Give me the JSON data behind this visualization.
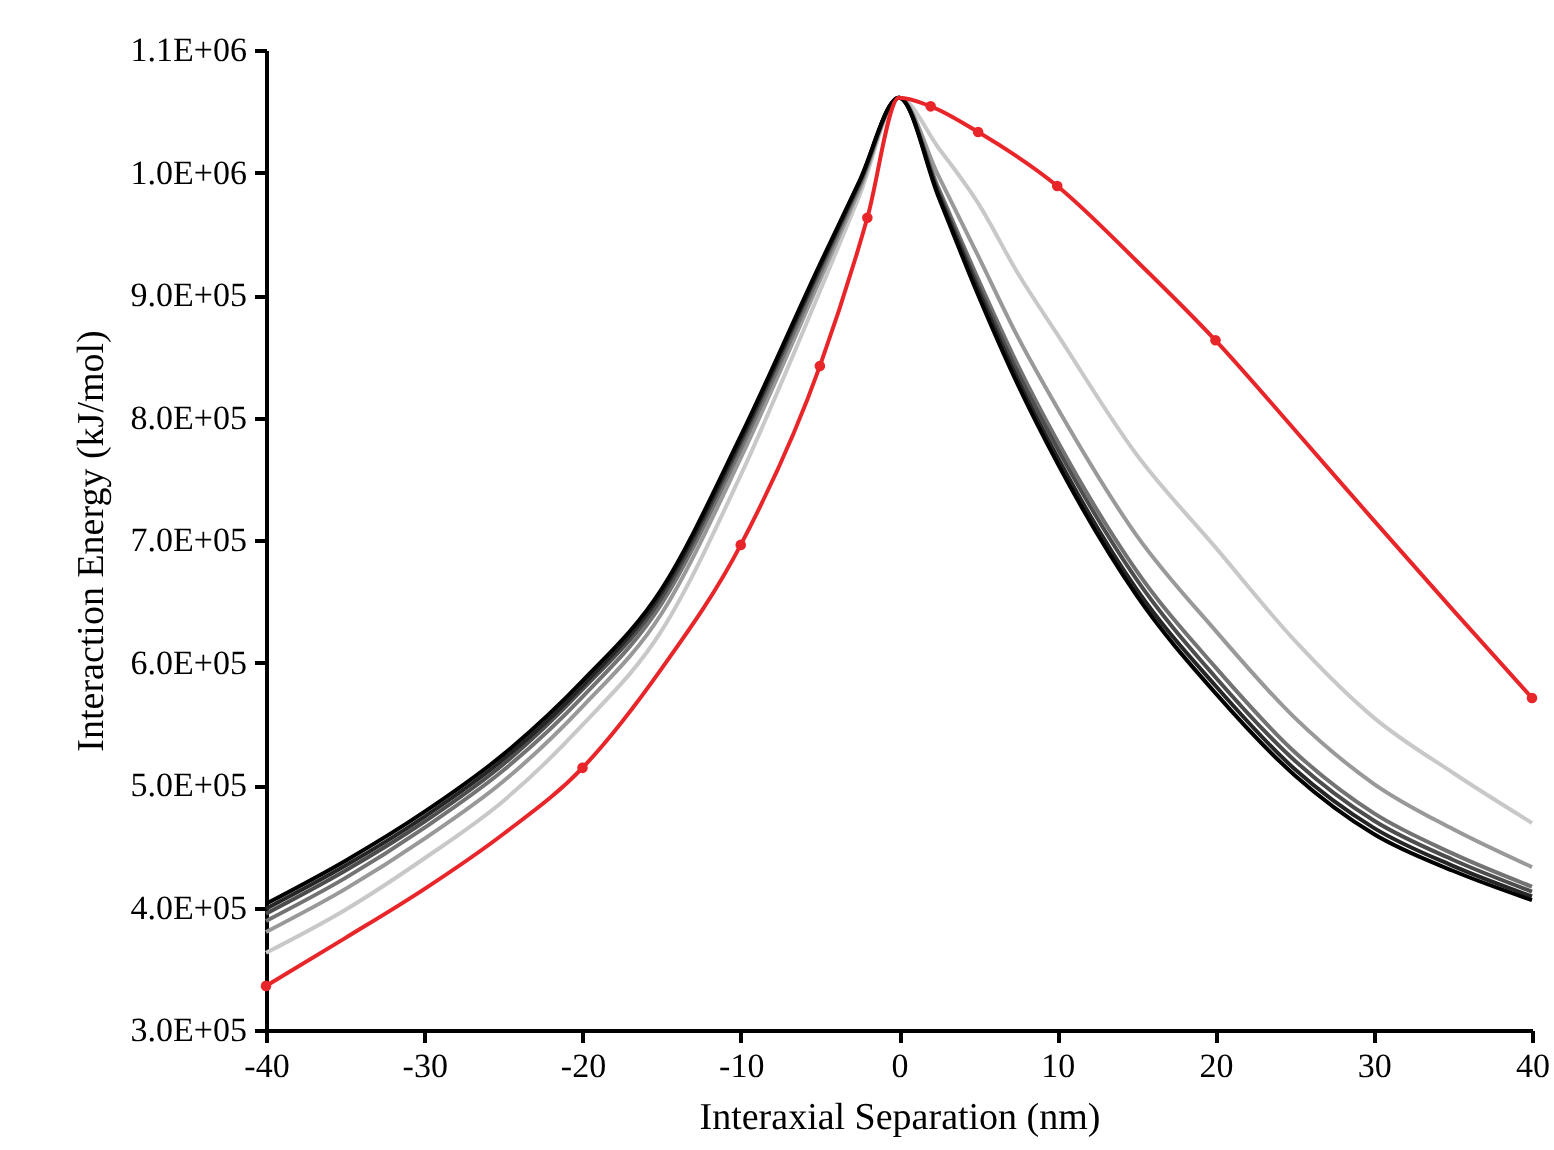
{
  "chart_data": {
    "type": "line",
    "xlabel": "Interaxial Separation (nm)",
    "ylabel": "Interaction Energy (kJ/mol)",
    "xlim": [
      -40,
      40
    ],
    "xticks": [
      -40,
      -30,
      -20,
      -10,
      0,
      10,
      20,
      30,
      40
    ],
    "ylim": [
      300000,
      1100000
    ],
    "yticks": [
      {
        "value": 300000,
        "label": "3.0E+05"
      },
      {
        "value": 400000,
        "label": "4.0E+05"
      },
      {
        "value": 500000,
        "label": "5.0E+05"
      },
      {
        "value": 600000,
        "label": "6.0E+05"
      },
      {
        "value": 700000,
        "label": "7.0E+05"
      },
      {
        "value": 800000,
        "label": "8.0E+05"
      },
      {
        "value": 900000,
        "label": "9.0E+05"
      },
      {
        "value": 1000000,
        "label": "1.0E+06"
      },
      {
        "value": 1100000,
        "label": "1.1E+06"
      }
    ],
    "grid": false,
    "x": [
      -40,
      -35,
      -30,
      -25,
      -20,
      -15,
      -10,
      -5,
      -2.5,
      0,
      2.5,
      5,
      7.5,
      10,
      15,
      20,
      25,
      30,
      35,
      40
    ],
    "series": [
      {
        "color": "#c8c8c8",
        "values": [
          363000,
          398000,
          440000,
          487000,
          549000,
          626000,
          753000,
          903000,
          981000,
          1061000,
          1020000,
          975000,
          918000,
          868000,
          770000,
          694000,
          618000,
          555000,
          510000,
          469000
        ]
      },
      {
        "color": "#999999",
        "values": [
          380000,
          415000,
          456000,
          503000,
          564000,
          640000,
          767000,
          912000,
          986000,
          1061000,
          997000,
          932000,
          866000,
          808000,
          704000,
          626000,
          555000,
          501000,
          464000,
          433000
        ]
      },
      {
        "color": "#737373",
        "values": [
          389000,
          424000,
          465000,
          512000,
          572000,
          648000,
          774000,
          917000,
          989000,
          1061000,
          987000,
          913000,
          843000,
          781000,
          675000,
          596000,
          527000,
          477000,
          444000,
          417000
        ]
      },
      {
        "color": "#4d4d4d",
        "values": [
          395000,
          430000,
          470000,
          517000,
          578000,
          653000,
          779000,
          921000,
          991000,
          1061000,
          984000,
          908000,
          837000,
          775000,
          668000,
          588000,
          520000,
          471000,
          439000,
          413000
        ]
      },
      {
        "color": "#262626",
        "values": [
          399000,
          434000,
          474000,
          521000,
          581000,
          657000,
          782000,
          923000,
          992000,
          1061000,
          982000,
          904000,
          831000,
          768000,
          660000,
          581000,
          513000,
          465000,
          434000,
          409000
        ]
      },
      {
        "color": "#000000",
        "values": [
          403000,
          438000,
          478000,
          525000,
          585000,
          660000,
          785000,
          925000,
          993000,
          1061000,
          980000,
          900000,
          827000,
          763000,
          655000,
          575000,
          508000,
          460000,
          430000,
          406000
        ]
      },
      {
        "color": "#e8262a",
        "x": [
          -40,
          -35,
          -30,
          -25,
          -20,
          -15,
          -10,
          -5,
          -2,
          0,
          2,
          5,
          10,
          15,
          20,
          25,
          30,
          35,
          40
        ],
        "values": [
          336000,
          375000,
          415000,
          460000,
          514000,
          595000,
          696000,
          842000,
          963000,
          1061000,
          1054000,
          1033000,
          989000,
          928000,
          863000,
          790000,
          716000,
          643000,
          571000
        ]
      },
      {
        "type": "scatter",
        "marker": "circle",
        "color": "#e8262a",
        "x": [
          -40,
          -20,
          -10,
          -5,
          -2,
          2,
          5,
          10,
          20,
          40
        ],
        "values": [
          336000,
          514000,
          696000,
          842000,
          963000,
          1054000,
          1033000,
          989000,
          863000,
          571000
        ]
      }
    ]
  }
}
